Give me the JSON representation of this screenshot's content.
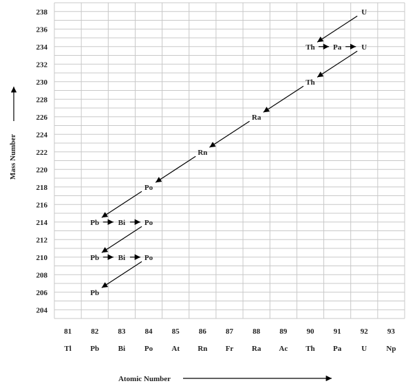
{
  "chart_data": {
    "type": "scatter",
    "title": "",
    "xlabel": "Atomic Number",
    "ylabel": "Mass Number",
    "x_ticks": [
      81,
      82,
      83,
      84,
      85,
      86,
      87,
      88,
      89,
      90,
      91,
      92,
      93
    ],
    "x_symbols": [
      "Tl",
      "Pb",
      "Bi",
      "Po",
      "At",
      "Rn",
      "Fr",
      "Ra",
      "Ac",
      "Th",
      "Pa",
      "U",
      "Np"
    ],
    "y_ticks": [
      204,
      206,
      208,
      210,
      212,
      214,
      216,
      218,
      220,
      222,
      224,
      226,
      228,
      230,
      232,
      234,
      236,
      238
    ],
    "xlim": [
      80.5,
      93.5
    ],
    "ylim": [
      203,
      239
    ],
    "grid": true,
    "nuclides": [
      {
        "symbol": "U",
        "z": 92,
        "a": 238
      },
      {
        "symbol": "Th",
        "z": 90,
        "a": 234
      },
      {
        "symbol": "Pa",
        "z": 91,
        "a": 234
      },
      {
        "symbol": "U",
        "z": 92,
        "a": 234
      },
      {
        "symbol": "Th",
        "z": 90,
        "a": 230
      },
      {
        "symbol": "Ra",
        "z": 88,
        "a": 226
      },
      {
        "symbol": "Rn",
        "z": 86,
        "a": 222
      },
      {
        "symbol": "Po",
        "z": 84,
        "a": 218
      },
      {
        "symbol": "Pb",
        "z": 82,
        "a": 214
      },
      {
        "symbol": "Bi",
        "z": 83,
        "a": 214
      },
      {
        "symbol": "Po",
        "z": 84,
        "a": 214
      },
      {
        "symbol": "Pb",
        "z": 82,
        "a": 210
      },
      {
        "symbol": "Bi",
        "z": 83,
        "a": 210
      },
      {
        "symbol": "Po",
        "z": 84,
        "a": 210
      },
      {
        "symbol": "Pb",
        "z": 82,
        "a": 206
      }
    ],
    "alpha_decays": [
      {
        "from": [
          92,
          238
        ],
        "to": [
          90,
          234
        ]
      },
      {
        "from": [
          92,
          234
        ],
        "to": [
          90,
          230
        ]
      },
      {
        "from": [
          90,
          230
        ],
        "to": [
          88,
          226
        ]
      },
      {
        "from": [
          88,
          226
        ],
        "to": [
          86,
          222
        ]
      },
      {
        "from": [
          86,
          222
        ],
        "to": [
          84,
          218
        ]
      },
      {
        "from": [
          84,
          218
        ],
        "to": [
          82,
          214
        ]
      },
      {
        "from": [
          84,
          214
        ],
        "to": [
          82,
          210
        ]
      },
      {
        "from": [
          84,
          210
        ],
        "to": [
          82,
          206
        ]
      }
    ],
    "beta_decays": [
      {
        "from": [
          90,
          234
        ],
        "to": [
          91,
          234
        ]
      },
      {
        "from": [
          91,
          234
        ],
        "to": [
          92,
          234
        ]
      },
      {
        "from": [
          82,
          214
        ],
        "to": [
          83,
          214
        ]
      },
      {
        "from": [
          83,
          214
        ],
        "to": [
          84,
          214
        ]
      },
      {
        "from": [
          82,
          210
        ],
        "to": [
          83,
          210
        ]
      },
      {
        "from": [
          83,
          210
        ],
        "to": [
          84,
          210
        ]
      }
    ]
  }
}
